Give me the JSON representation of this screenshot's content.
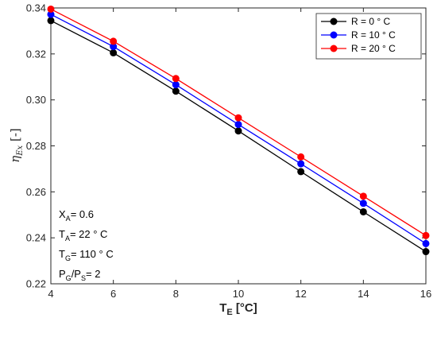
{
  "chart_data": {
    "type": "line",
    "xlabel": "T_E [°C]",
    "ylabel": "η_Ex [-]",
    "x": [
      4,
      6,
      8,
      10,
      12,
      14,
      16
    ],
    "xlim": [
      4,
      16
    ],
    "ylim": [
      0.22,
      0.34
    ],
    "x_ticks": [
      "4",
      "6",
      "8",
      "10",
      "12",
      "14",
      "16"
    ],
    "y_ticks": [
      "0.22",
      "0.24",
      "0.26",
      "0.28",
      "0.30",
      "0.32",
      "0.34"
    ],
    "grid": false,
    "legend_position": "top-right",
    "series": [
      {
        "name": "R = 0 ° C",
        "color": "#000000",
        "values": [
          0.3345,
          0.3205,
          0.3038,
          0.2865,
          0.2688,
          0.2513,
          0.234
        ]
      },
      {
        "name": "R = 10 ° C",
        "color": "#0000ff",
        "values": [
          0.3372,
          0.3232,
          0.3066,
          0.2893,
          0.2722,
          0.255,
          0.2375
        ]
      },
      {
        "name": "R = 20 ° C",
        "color": "#ff0000",
        "values": [
          0.3395,
          0.3255,
          0.3093,
          0.2922,
          0.2752,
          0.2581,
          0.241
        ]
      }
    ],
    "annotations": [
      {
        "id": "xa",
        "main": "X",
        "sub": "A",
        "rest": "= 0.6"
      },
      {
        "id": "ta",
        "main": "T",
        "sub": "A",
        "rest": "= 22 ° C"
      },
      {
        "id": "tg",
        "main": "T",
        "sub": "G",
        "rest": "= 110 ° C"
      },
      {
        "id": "pgps",
        "main": "P",
        "sub": "G",
        "mid": "/P",
        "sub2": "S",
        "rest": "= 2"
      }
    ]
  }
}
